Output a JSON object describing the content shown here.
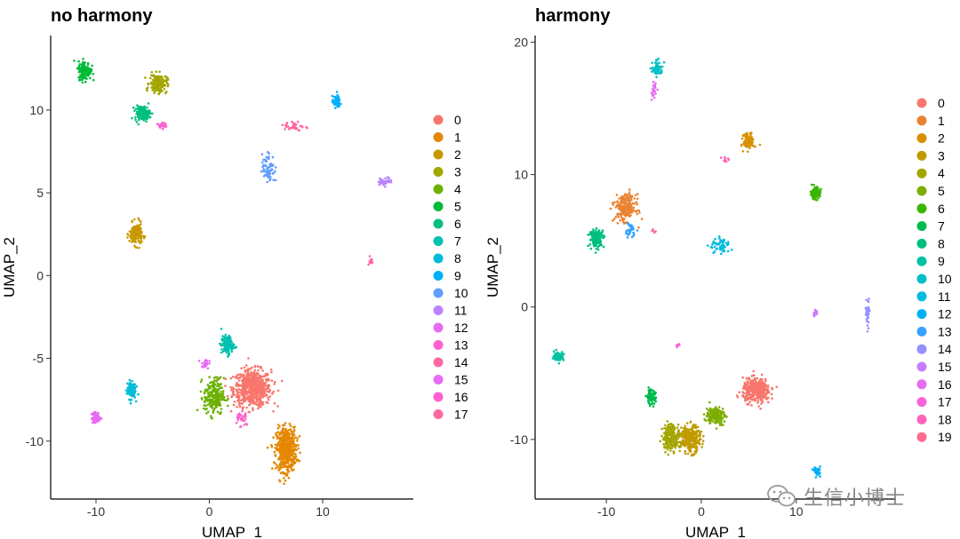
{
  "chart_data": [
    {
      "type": "scatter",
      "title": "no harmony",
      "xlabel": "UMAP_1",
      "ylabel": "UMAP_2",
      "xlim": [
        -14,
        18
      ],
      "ylim": [
        -13.5,
        14.5
      ],
      "xticks": [
        -10,
        0,
        10
      ],
      "yticks": [
        -10,
        -5,
        0,
        5,
        10
      ],
      "legend": {
        "position": "right",
        "entries": [
          "0",
          "1",
          "2",
          "3",
          "4",
          "5",
          "6",
          "7",
          "8",
          "9",
          "10",
          "11",
          "12",
          "13",
          "14",
          "15",
          "16",
          "17"
        ],
        "colors": [
          "#F8766D",
          "#E58700",
          "#C99800",
          "#A3A500",
          "#6BB100",
          "#00BA38",
          "#00BF7D",
          "#00C0AF",
          "#00BCD8",
          "#00B0F6",
          "#619CFF",
          "#B983FF",
          "#E76BF3",
          "#FD61D1",
          "#FF67A4",
          "#E76BF3",
          "#FD61D1",
          "#FF67A4"
        ]
      },
      "clusters": [
        {
          "cluster": "0",
          "cx": 3.8,
          "cy": -6.8,
          "sx": 1.5,
          "sy": 1.0,
          "n": 650
        },
        {
          "cluster": "1",
          "cx": 6.8,
          "cy": -10.5,
          "sx": 0.8,
          "sy": 1.2,
          "n": 520
        },
        {
          "cluster": "2",
          "cx": -6.5,
          "cy": 2.5,
          "sx": 0.5,
          "sy": 0.6,
          "n": 160
        },
        {
          "cluster": "3",
          "cx": -4.5,
          "cy": 11.6,
          "sx": 0.7,
          "sy": 0.5,
          "n": 170
        },
        {
          "cluster": "4",
          "cx": 0.4,
          "cy": -7.3,
          "sx": 0.8,
          "sy": 1.0,
          "n": 230
        },
        {
          "cluster": "5",
          "cx": -11.0,
          "cy": 12.4,
          "sx": 0.5,
          "sy": 0.5,
          "n": 160
        },
        {
          "cluster": "6",
          "cx": -5.9,
          "cy": 9.8,
          "sx": 0.6,
          "sy": 0.4,
          "n": 150
        },
        {
          "cluster": "7",
          "cx": 1.6,
          "cy": -4.2,
          "sx": 0.5,
          "sy": 0.5,
          "n": 130
        },
        {
          "cluster": "8",
          "cx": -6.9,
          "cy": -6.9,
          "sx": 0.35,
          "sy": 0.5,
          "n": 110
        },
        {
          "cluster": "9",
          "cx": 11.2,
          "cy": 10.5,
          "sx": 0.3,
          "sy": 0.3,
          "n": 70
        },
        {
          "cluster": "10",
          "cx": 5.2,
          "cy": 6.5,
          "sx": 0.5,
          "sy": 0.8,
          "n": 70
        },
        {
          "cluster": "11",
          "cx": 15.5,
          "cy": 5.7,
          "sx": 0.6,
          "sy": 0.2,
          "n": 40
        },
        {
          "cluster": "12",
          "cx": -10.0,
          "cy": -8.6,
          "sx": 0.35,
          "sy": 0.3,
          "n": 70
        },
        {
          "cluster": "13",
          "cx": -4.2,
          "cy": 9.1,
          "sx": 0.3,
          "sy": 0.15,
          "n": 25
        },
        {
          "cluster": "14",
          "cx": 14.2,
          "cy": 0.9,
          "sx": 0.2,
          "sy": 0.2,
          "n": 12
        },
        {
          "cluster": "15",
          "cx": -0.4,
          "cy": -5.3,
          "sx": 0.3,
          "sy": 0.3,
          "n": 20
        },
        {
          "cluster": "16",
          "cx": 2.8,
          "cy": -8.6,
          "sx": 0.5,
          "sy": 0.5,
          "n": 30
        },
        {
          "cluster": "17",
          "cx": 7.5,
          "cy": 9.0,
          "sx": 0.8,
          "sy": 0.3,
          "n": 35
        }
      ]
    },
    {
      "type": "scatter",
      "title": "harmony",
      "xlabel": "UMAP_1",
      "ylabel": "UMAP_2",
      "xlim": [
        -17.5,
        20.5
      ],
      "ylim": [
        -14.5,
        20.5
      ],
      "xticks": [
        -10,
        0,
        10
      ],
      "yticks": [
        -10,
        0,
        10,
        20
      ],
      "legend": {
        "position": "right",
        "entries": [
          "0",
          "1",
          "2",
          "3",
          "4",
          "5",
          "6",
          "7",
          "8",
          "9",
          "10",
          "11",
          "12",
          "13",
          "14",
          "15",
          "16",
          "17",
          "18",
          "19"
        ],
        "colors": [
          "#F8766D",
          "#EA8331",
          "#D89000",
          "#C09B00",
          "#A3A500",
          "#7CAE00",
          "#39B600",
          "#00BB4E",
          "#00BF7D",
          "#00C1A3",
          "#00BFC4",
          "#00BAE0",
          "#00B0F6",
          "#35A2FF",
          "#9590FF",
          "#C77CFF",
          "#E76BF3",
          "#FA62DB",
          "#FF62BC",
          "#FF6C91"
        ]
      },
      "clusters": [
        {
          "cluster": "0",
          "cx": 5.8,
          "cy": -6.3,
          "sx": 1.3,
          "sy": 0.8,
          "n": 380
        },
        {
          "cluster": "1",
          "cx": -8.0,
          "cy": 7.5,
          "sx": 1.0,
          "sy": 0.9,
          "n": 220
        },
        {
          "cluster": "2",
          "cx": 5.0,
          "cy": 12.5,
          "sx": 0.5,
          "sy": 0.5,
          "n": 130
        },
        {
          "cluster": "3",
          "cx": -1.2,
          "cy": -10.0,
          "sx": 1.0,
          "sy": 0.9,
          "n": 280
        },
        {
          "cluster": "4",
          "cx": -3.2,
          "cy": -9.8,
          "sx": 0.8,
          "sy": 0.9,
          "n": 200
        },
        {
          "cluster": "5",
          "cx": 1.5,
          "cy": -8.2,
          "sx": 0.9,
          "sy": 0.6,
          "n": 170
        },
        {
          "cluster": "6",
          "cx": 12.0,
          "cy": 8.6,
          "sx": 0.45,
          "sy": 0.4,
          "n": 110
        },
        {
          "cluster": "7",
          "cx": -5.3,
          "cy": -6.8,
          "sx": 0.45,
          "sy": 0.5,
          "n": 90
        },
        {
          "cluster": "8",
          "cx": -11.0,
          "cy": 5.2,
          "sx": 0.7,
          "sy": 0.6,
          "n": 140
        },
        {
          "cluster": "9",
          "cx": -15.0,
          "cy": -3.7,
          "sx": 0.45,
          "sy": 0.3,
          "n": 90
        },
        {
          "cluster": "10",
          "cx": -4.6,
          "cy": 18.0,
          "sx": 0.5,
          "sy": 0.5,
          "n": 60
        },
        {
          "cluster": "11",
          "cx": 2.0,
          "cy": 4.6,
          "sx": 1.0,
          "sy": 0.5,
          "n": 60
        },
        {
          "cluster": "12",
          "cx": 12.2,
          "cy": -12.4,
          "sx": 0.3,
          "sy": 0.3,
          "n": 40
        },
        {
          "cluster": "13",
          "cx": -7.5,
          "cy": 5.8,
          "sx": 0.5,
          "sy": 0.5,
          "n": 35
        },
        {
          "cluster": "14",
          "cx": 17.5,
          "cy": -0.5,
          "sx": 0.2,
          "sy": 1.0,
          "n": 35
        },
        {
          "cluster": "15",
          "cx": 12.0,
          "cy": -0.5,
          "sx": 0.2,
          "sy": 0.2,
          "n": 12
        },
        {
          "cluster": "16",
          "cx": -5.0,
          "cy": 16.3,
          "sx": 0.2,
          "sy": 0.6,
          "n": 25
        },
        {
          "cluster": "17",
          "cx": -2.5,
          "cy": -3.0,
          "sx": 0.2,
          "sy": 0.2,
          "n": 10
        },
        {
          "cluster": "18",
          "cx": 2.5,
          "cy": 11.2,
          "sx": 0.3,
          "sy": 0.2,
          "n": 10
        },
        {
          "cluster": "19",
          "cx": -5.0,
          "cy": 5.8,
          "sx": 0.2,
          "sy": 0.2,
          "n": 6
        }
      ]
    }
  ],
  "watermark": {
    "text": "生信小博士",
    "icon": "wechat-icon"
  }
}
